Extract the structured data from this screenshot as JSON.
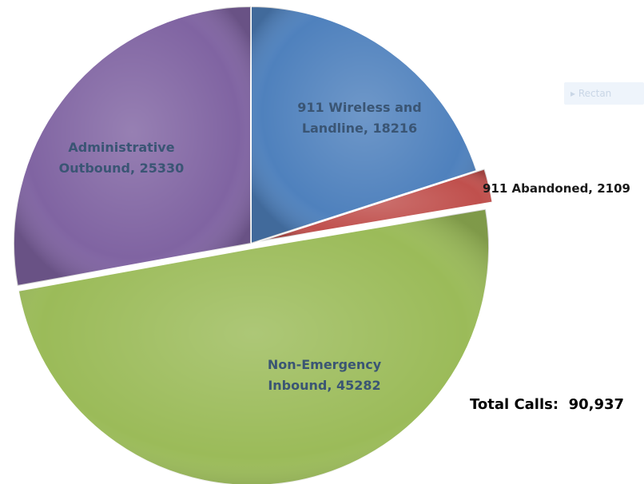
{
  "chart_data": {
    "type": "pie",
    "title": "",
    "total_label": "Total Calls:  90,937",
    "series": [
      {
        "name": "",
        "values": [
          18216,
          2109,
          45282,
          25330
        ]
      }
    ],
    "categories": [
      "911 Wireless and Landline",
      "911 Abandoned",
      "Non-Emergency Inbound",
      "Administrative Outbound"
    ],
    "labels": [
      [
        "911 Wireless and",
        "Landline, 18216"
      ],
      [
        "911 Abandoned, 2109"
      ],
      [
        "Non-Emergency",
        "Inbound, 45282"
      ],
      [
        "Administrative",
        "Outbound, 25330"
      ]
    ],
    "colors": [
      "#4f81bd",
      "#c0504d",
      "#9bbb59",
      "#8064a2"
    ],
    "label_color": "#3a5574",
    "start": "12 o'clock, clockwise"
  },
  "ghost_control": {
    "label": "▸ Rectan",
    "icon": "play-icon"
  }
}
